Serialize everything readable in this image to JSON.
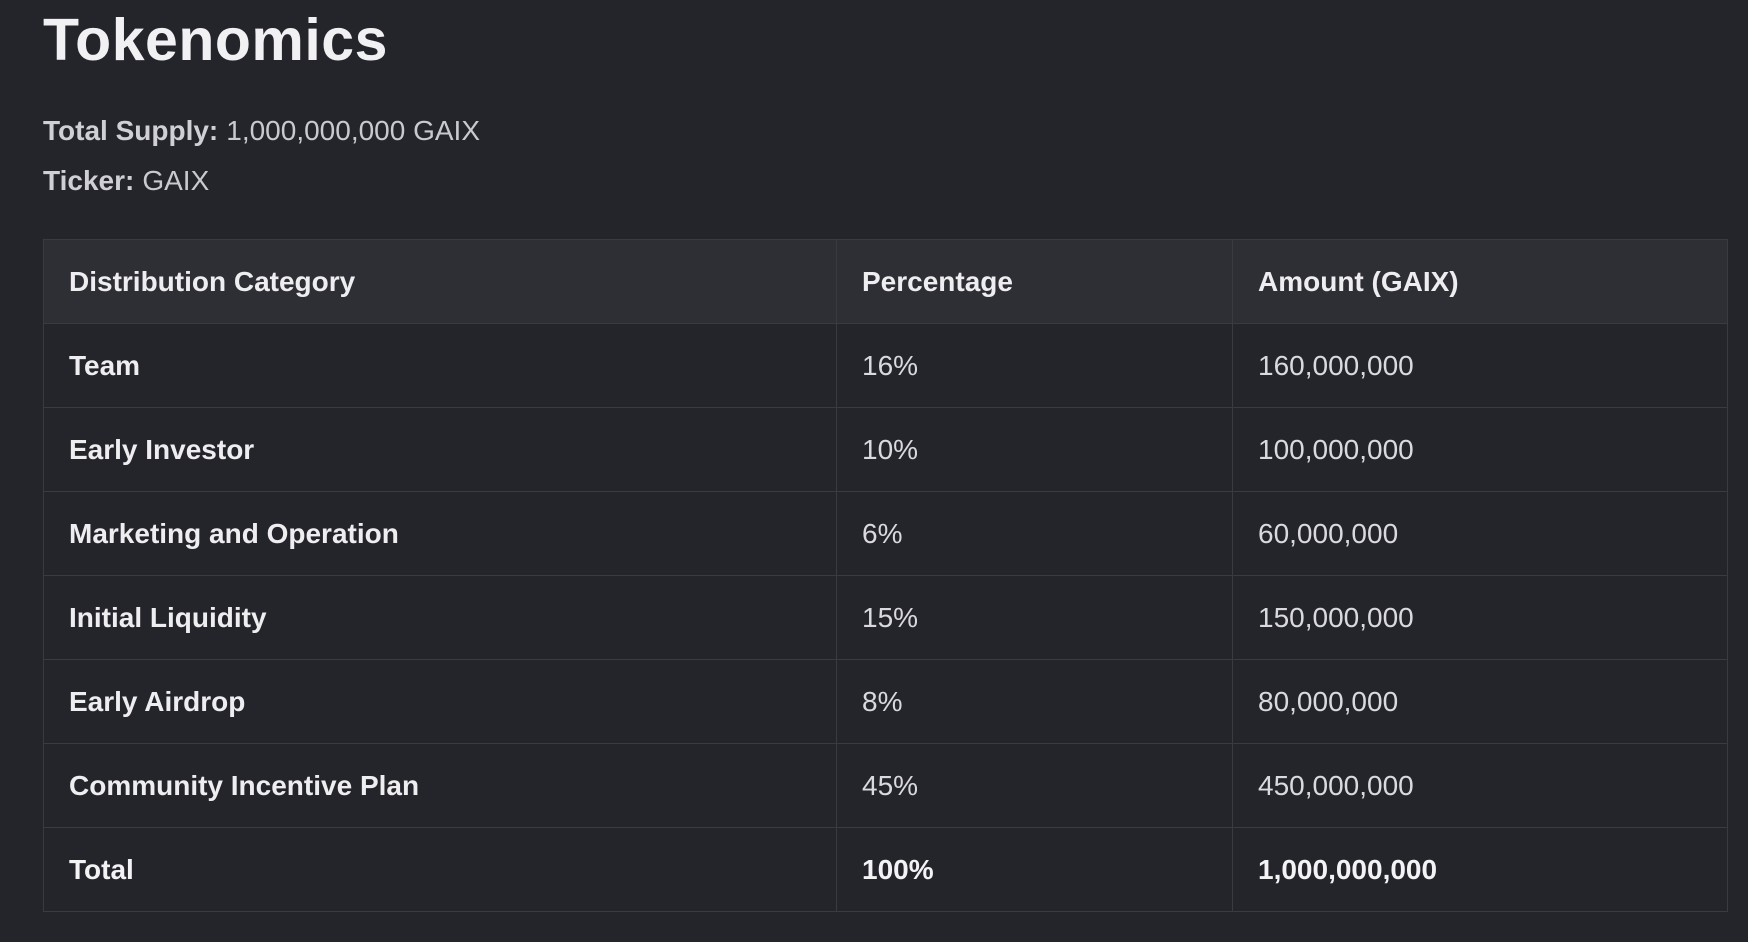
{
  "title": "Tokenomics",
  "supply": {
    "label": "Total Supply:",
    "value": "1,000,000,000 GAIX"
  },
  "ticker": {
    "label": "Ticker:",
    "value": "GAIX"
  },
  "table": {
    "headers": [
      "Distribution Category",
      "Percentage",
      "Amount (GAIX)"
    ],
    "rows": [
      {
        "category": "Team",
        "percentage": "16%",
        "amount": "160,000,000"
      },
      {
        "category": "Early Investor",
        "percentage": "10%",
        "amount": "100,000,000"
      },
      {
        "category": "Marketing and Operation",
        "percentage": "6%",
        "amount": "60,000,000"
      },
      {
        "category": "Initial Liquidity",
        "percentage": "15%",
        "amount": "150,000,000"
      },
      {
        "category": "Early Airdrop",
        "percentage": "8%",
        "amount": "80,000,000"
      },
      {
        "category": "Community Incentive Plan",
        "percentage": "45%",
        "amount": "450,000,000"
      }
    ],
    "total": {
      "category": "Total",
      "percentage": "100%",
      "amount": "1,000,000,000"
    }
  }
}
